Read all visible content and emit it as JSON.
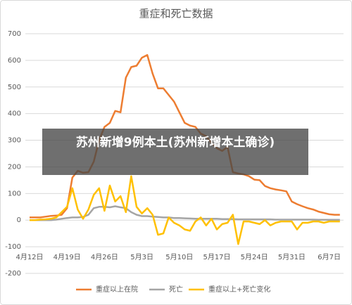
{
  "chart_data": {
    "type": "line",
    "title": "重症和死亡数据",
    "categories": [
      "4月12日",
      null,
      null,
      null,
      null,
      null,
      null,
      "4月19日",
      null,
      null,
      null,
      null,
      null,
      null,
      "4月26日",
      null,
      null,
      null,
      null,
      null,
      null,
      "5月3日",
      null,
      null,
      null,
      null,
      null,
      null,
      "5月10日",
      null,
      null,
      null,
      null,
      null,
      null,
      "5月17日",
      null,
      null,
      null,
      null,
      null,
      null,
      "5月24日",
      null,
      null,
      null,
      null,
      null,
      null,
      "5月31日",
      null,
      null,
      null,
      null,
      null,
      null,
      "6月7日",
      null,
      null
    ],
    "series": [
      {
        "name": "重症以上在院",
        "color": "#ed7d31",
        "values": [
          10,
          10,
          10,
          13,
          16,
          17,
          20,
          45,
          160,
          185,
          178,
          180,
          220,
          300,
          350,
          365,
          410,
          405,
          535,
          575,
          580,
          610,
          620,
          550,
          495,
          495,
          470,
          445,
          405,
          365,
          355,
          350,
          325,
          315,
          290,
          270,
          260,
          275,
          180,
          175,
          172,
          165,
          152,
          150,
          128,
          120,
          115,
          112,
          108,
          70,
          60,
          52,
          45,
          40,
          32,
          27,
          22,
          20,
          20
        ]
      },
      {
        "name": "死亡",
        "color": "#a5a5a5",
        "values": [
          0,
          0,
          0,
          0,
          0,
          2,
          5,
          8,
          10,
          10,
          12,
          20,
          45,
          50,
          50,
          48,
          52,
          48,
          45,
          30,
          20,
          15,
          15,
          13,
          12,
          10,
          10,
          8,
          8,
          7,
          6,
          5,
          5,
          5,
          5,
          5,
          4,
          4,
          4,
          3,
          3,
          3,
          3,
          3,
          3,
          3,
          2,
          2,
          2,
          2,
          2,
          2,
          2,
          2,
          1,
          1,
          1,
          1,
          1
        ]
      },
      {
        "name": "重症以上+死亡变化",
        "color": "#ffc000",
        "values": [
          0,
          0,
          2,
          3,
          5,
          10,
          30,
          50,
          120,
          40,
          5,
          40,
          95,
          120,
          35,
          130,
          70,
          90,
          30,
          165,
          50,
          25,
          45,
          20,
          -55,
          -50,
          10,
          -10,
          -20,
          -35,
          -40,
          -5,
          10,
          -20,
          5,
          -35,
          -15,
          -10,
          20,
          -90,
          -5,
          -5,
          -10,
          -15,
          0,
          -20,
          -10,
          -5,
          -5,
          -5,
          -35,
          -10,
          -10,
          -5,
          -5,
          -10,
          -5,
          -5,
          -5
        ]
      }
    ],
    "ylim": [
      -200,
      700
    ],
    "yticks": [
      -200,
      -100,
      0,
      100,
      200,
      300,
      400,
      500,
      600,
      700
    ],
    "grid": true
  },
  "banner": {
    "text": "苏州新增9例本土(苏州新增本土确诊)"
  }
}
